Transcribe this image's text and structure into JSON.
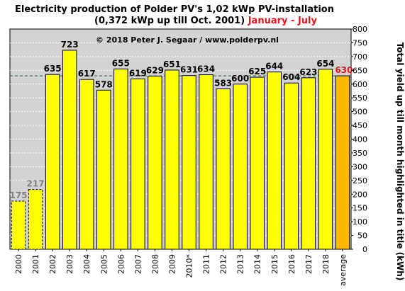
{
  "chart_data": {
    "type": "bar",
    "title_part1": "Electricity production  of Polder PV's 1,02 kWp PV-installation",
    "title_part2": "(0,372 kWp up till Oct. 2001)",
    "title_highlight": "January - July",
    "copyright": "© 2018 Peter J. Segaar / www.polderpv.nl",
    "ylabel": "Total yield up till month highlighted in title (kWh)",
    "ylim": [
      0,
      800
    ],
    "ytick_step": 50,
    "reference_line": 630,
    "categories": [
      "2000",
      "2001",
      "2002",
      "2003",
      "2004",
      "2005",
      "2006",
      "2007",
      "2008",
      "2009",
      "2010*",
      "2011",
      "2012",
      "2013",
      "2014",
      "2015",
      "2016",
      "2017",
      "2018",
      "average"
    ],
    "values": [
      175,
      217,
      635,
      723,
      617,
      578,
      655,
      619,
      629,
      651,
      631,
      634,
      583,
      600,
      625,
      644,
      604,
      623,
      654,
      630
    ],
    "labels": [
      "175",
      "217",
      "635",
      "723",
      "617",
      "578",
      "655",
      "619",
      "629",
      "651",
      "631",
      "634",
      "583",
      "600",
      "625",
      "644",
      "604",
      "623",
      "654",
      "630"
    ],
    "bar_styles": [
      "partial",
      "partial",
      "normal",
      "normal",
      "normal",
      "normal",
      "normal",
      "normal",
      "normal",
      "normal",
      "normal",
      "normal",
      "normal",
      "normal",
      "normal",
      "normal",
      "normal",
      "normal",
      "normal",
      "average"
    ],
    "colors": {
      "bar": "#ffff00",
      "average_bar": "#ffb800",
      "plot_bg": "#d3d3d3",
      "grid": "#ffffff",
      "ref_line": "#1a6b3a",
      "partial_label": "#808080",
      "average_label": "#e8141b",
      "highlight": "#e8141b"
    },
    "grid": true
  }
}
